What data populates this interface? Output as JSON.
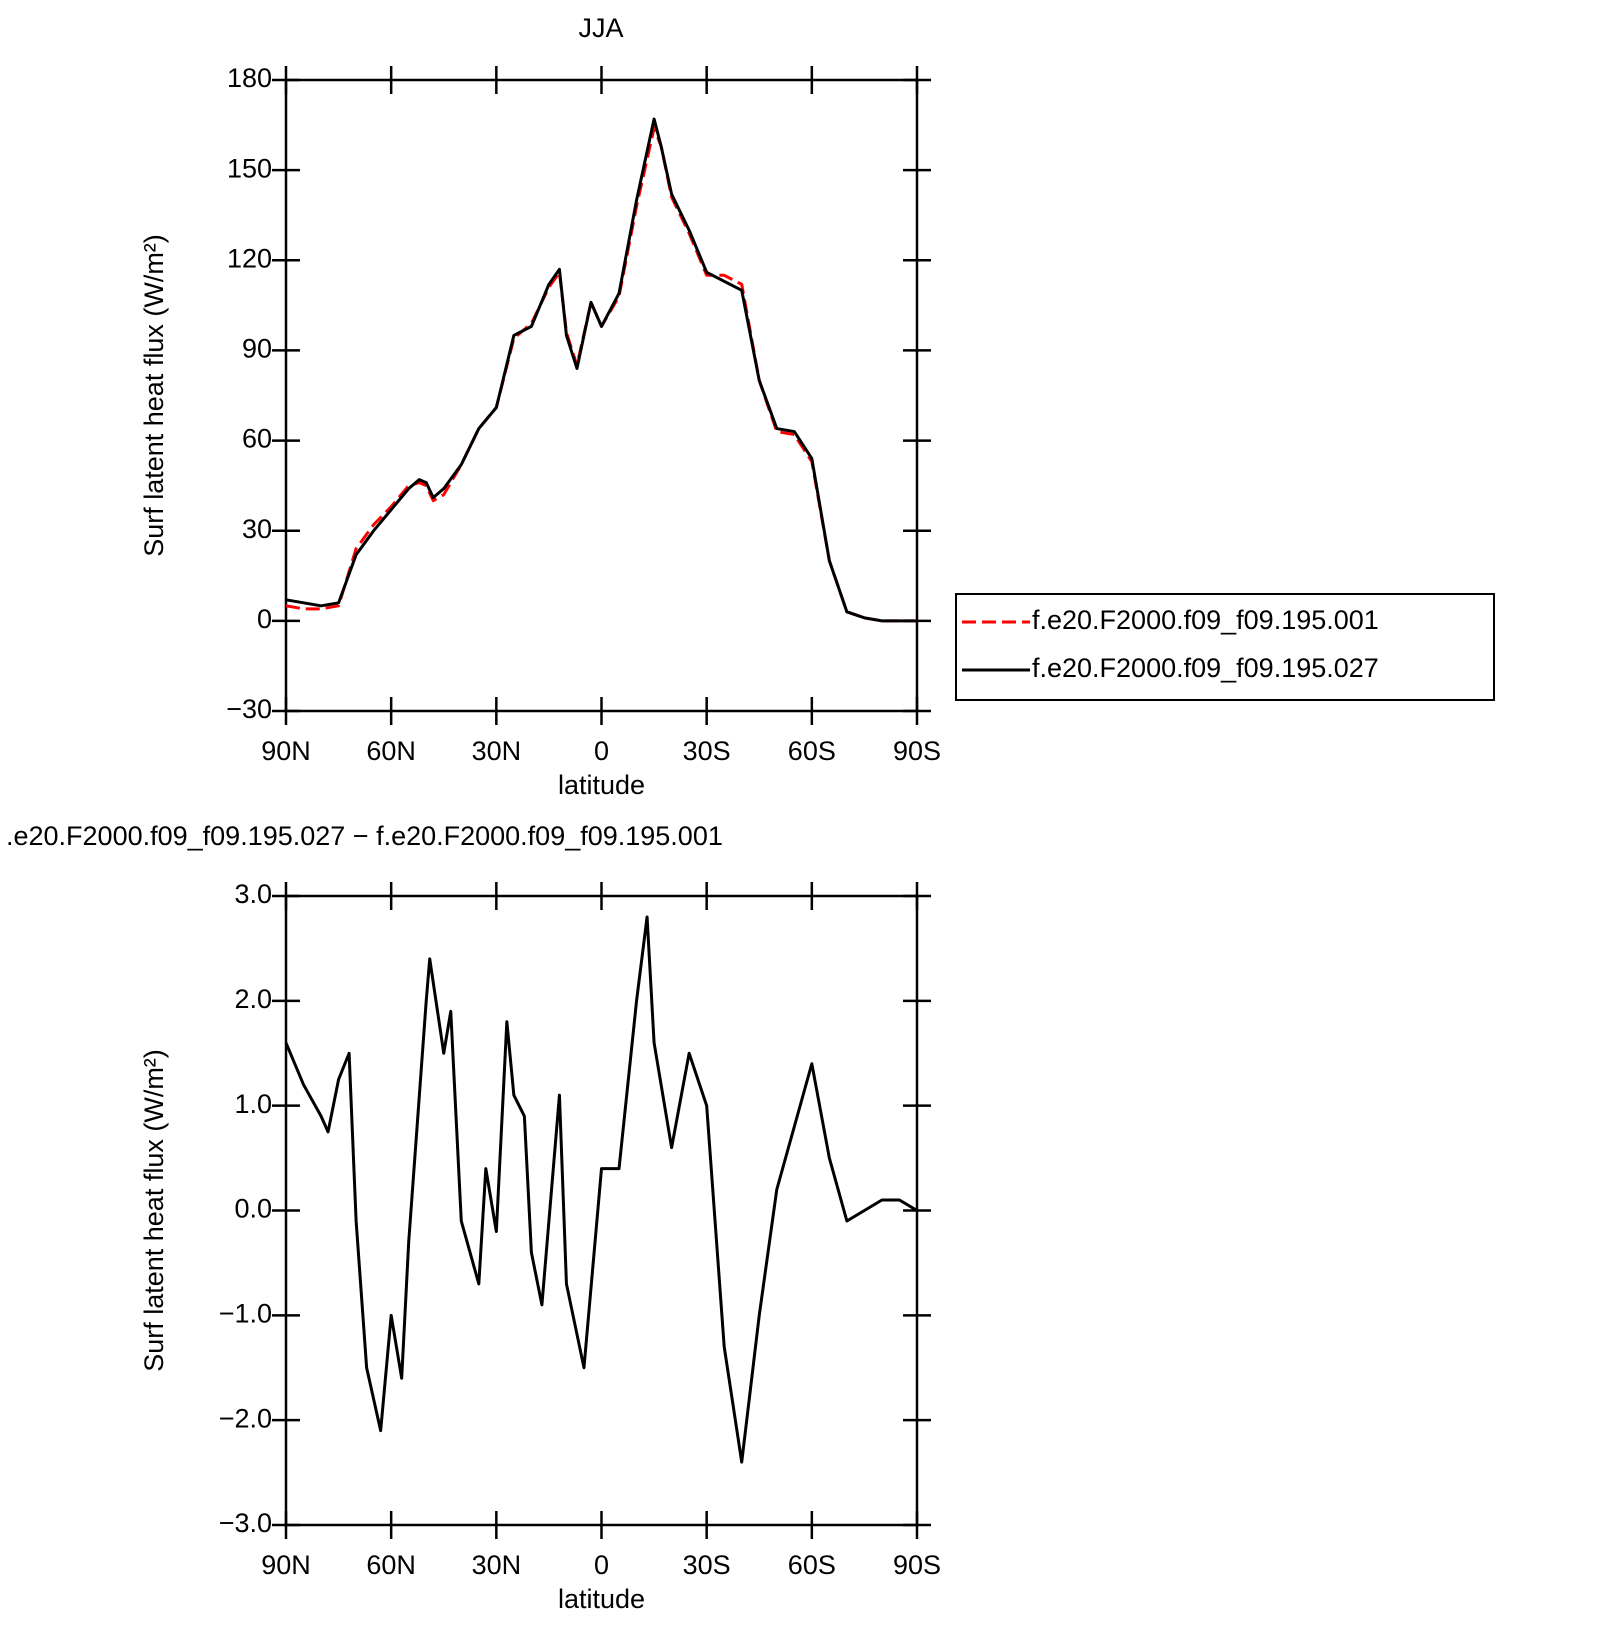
{
  "chart_data": [
    {
      "type": "line",
      "title": "JJA",
      "xlabel": "latitude",
      "ylabel": "Surf latent heat flux (W/m²)",
      "x": [
        90,
        85,
        80,
        75,
        70,
        65,
        60,
        55,
        52,
        50,
        48,
        45,
        40,
        35,
        30,
        25,
        20,
        15,
        12,
        10,
        7,
        3,
        0,
        -5,
        -10,
        -15,
        -17,
        -20,
        -25,
        -30,
        -35,
        -40,
        -45,
        -50,
        -55,
        -60,
        -65,
        -70,
        -75,
        -80,
        -85,
        -90
      ],
      "series": [
        {
          "name": "f.e20.F2000.f09_f09.195.001",
          "color": "#ff0000",
          "line_style": "dashed",
          "values": [
            5,
            4,
            4,
            5,
            24,
            32,
            38,
            45,
            46,
            45,
            40,
            42,
            52,
            64,
            71,
            94,
            99,
            111,
            116,
            96,
            85,
            106,
            98,
            108,
            138,
            164,
            158,
            141,
            129,
            115,
            115,
            112,
            80,
            63,
            62,
            53,
            20,
            3,
            1,
            0,
            0,
            0
          ]
        },
        {
          "name": "f.e20.F2000.f09_f09.195.027",
          "color": "#000000",
          "line_style": "solid",
          "values": [
            7,
            6,
            5,
            6,
            22,
            30,
            37,
            44,
            47,
            46,
            41,
            44,
            52,
            64,
            71,
            95,
            98,
            112,
            117,
            95,
            84,
            106,
            98,
            109,
            140,
            167,
            158,
            142,
            130,
            116,
            113,
            110,
            80,
            64,
            63,
            54,
            20,
            3,
            1,
            0,
            0,
            0
          ]
        }
      ],
      "xlim": [
        90,
        -90
      ],
      "xticks": [
        {
          "value": 90,
          "label": "90N"
        },
        {
          "value": 60,
          "label": "60N"
        },
        {
          "value": 30,
          "label": "30N"
        },
        0,
        {
          "value": -30,
          "label": "30S"
        },
        {
          "value": -60,
          "label": "60S"
        },
        {
          "value": -90,
          "label": "90S"
        }
      ],
      "ylim": [
        -30,
        180
      ],
      "yticks": [
        {
          "value": -30,
          "label": "−30"
        },
        0,
        30,
        60,
        90,
        120,
        150,
        180
      ],
      "legend": "outside-right"
    },
    {
      "type": "line",
      "title": ".e20.F2000.f09_f09.195.027 − f.e20.F2000.f09_f09.195.001",
      "xlabel": "latitude",
      "ylabel": "Surf latent heat flux (W/m²)",
      "x": [
        90,
        85,
        80,
        78,
        75,
        72,
        70,
        67,
        65,
        63,
        60,
        57,
        55,
        50,
        49,
        45,
        43,
        40,
        35,
        33,
        30,
        27,
        25,
        22,
        20,
        17,
        12,
        10,
        5,
        0,
        -5,
        -10,
        -13,
        -15,
        -20,
        -25,
        -30,
        -35,
        -40,
        -45,
        -50,
        -55,
        -60,
        -65,
        -70,
        -75,
        -80,
        -85,
        -90
      ],
      "series": [
        {
          "color": "#000000",
          "line_style": "solid",
          "values": [
            1.6,
            1.2,
            0.9,
            0.75,
            1.25,
            1.5,
            -0.1,
            -1.5,
            -1.8,
            -2.1,
            -1.0,
            -1.6,
            -0.3,
            2.0,
            2.4,
            1.5,
            1.9,
            -0.1,
            -0.7,
            0.4,
            -0.2,
            1.8,
            1.1,
            0.9,
            -0.4,
            -0.9,
            1.1,
            -0.7,
            -1.5,
            0.4,
            0.4,
            2.0,
            2.8,
            1.6,
            0.6,
            1.5,
            1.0,
            -1.3,
            -2.4,
            -1.0,
            0.2,
            0.8,
            1.4,
            0.5,
            -0.1,
            0.0,
            0.1,
            0.1,
            0.0
          ]
        }
      ],
      "xlim": [
        90,
        -90
      ],
      "xticks": [
        {
          "value": 90,
          "label": "90N"
        },
        {
          "value": 60,
          "label": "60N"
        },
        {
          "value": 30,
          "label": "30N"
        },
        0,
        {
          "value": -30,
          "label": "30S"
        },
        {
          "value": -60,
          "label": "60S"
        },
        {
          "value": -90,
          "label": "90S"
        }
      ],
      "ylim": [
        -3,
        3
      ],
      "yticks": [
        {
          "value": -3,
          "label": "−3.0"
        },
        {
          "value": -2,
          "label": "−2.0"
        },
        {
          "value": -1,
          "label": "−1.0"
        },
        {
          "value": 0,
          "label": "0.0"
        },
        {
          "value": 1,
          "label": "1.0"
        },
        {
          "value": 2,
          "label": "2.0"
        },
        {
          "value": 3,
          "label": "3.0"
        }
      ]
    }
  ]
}
